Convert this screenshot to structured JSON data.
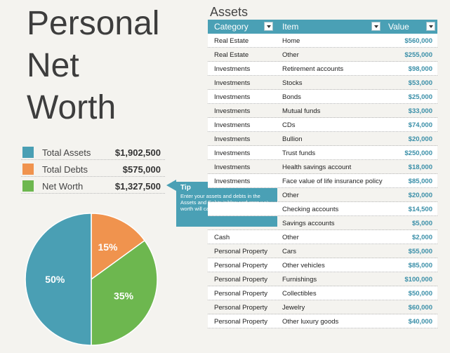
{
  "title": {
    "line1": "Personal",
    "line2": "Net",
    "line3": "Worth"
  },
  "summary": [
    {
      "label": "Total Assets",
      "value": "$1,902,500",
      "color": "#4a9fb4"
    },
    {
      "label": "Total Debts",
      "value": "$575,000",
      "color": "#f0934e"
    },
    {
      "label": "Net Worth",
      "value": "$1,327,500",
      "color": "#6db74f"
    }
  ],
  "tip": {
    "title": "Tip",
    "text": "Enter your assets and debts in the Assets and Debts tables and your net worth will calculate automatically."
  },
  "chart_data": {
    "type": "pie",
    "slices": [
      {
        "label": "50%",
        "value": 50,
        "color": "#4a9fb4"
      },
      {
        "label": "15%",
        "value": 15,
        "color": "#f0934e"
      },
      {
        "label": "35%",
        "value": 35,
        "color": "#6db74f"
      }
    ]
  },
  "assets": {
    "title": "Assets",
    "headers": {
      "category": "Category",
      "item": "Item",
      "value": "Value"
    },
    "rows": [
      {
        "category": "Real Estate",
        "item": "Home",
        "value": "$560,000"
      },
      {
        "category": "Real Estate",
        "item": "Other",
        "value": "$255,000"
      },
      {
        "category": "Investments",
        "item": "Retirement accounts",
        "value": "$98,000"
      },
      {
        "category": "Investments",
        "item": "Stocks",
        "value": "$53,000"
      },
      {
        "category": "Investments",
        "item": "Bonds",
        "value": "$25,000"
      },
      {
        "category": "Investments",
        "item": "Mutual funds",
        "value": "$33,000"
      },
      {
        "category": "Investments",
        "item": "CDs",
        "value": "$74,000"
      },
      {
        "category": "Investments",
        "item": "Bullion",
        "value": "$20,000"
      },
      {
        "category": "Investments",
        "item": "Trust funds",
        "value": "$250,000"
      },
      {
        "category": "Investments",
        "item": "Health savings account",
        "value": "$18,000"
      },
      {
        "category": "Investments",
        "item": "Face value of life insurance policy",
        "value": "$85,000"
      },
      {
        "category": "",
        "item": "Other",
        "value": "$20,000"
      },
      {
        "category": "",
        "item": "Checking accounts",
        "value": "$14,500"
      },
      {
        "category": "",
        "item": "Savings accounts",
        "value": "$5,000"
      },
      {
        "category": "Cash",
        "item": "Other",
        "value": "$2,000"
      },
      {
        "category": "Personal Property",
        "item": "Cars",
        "value": "$55,000"
      },
      {
        "category": "Personal Property",
        "item": "Other vehicles",
        "value": "$85,000"
      },
      {
        "category": "Personal Property",
        "item": "Furnishings",
        "value": "$100,000"
      },
      {
        "category": "Personal Property",
        "item": "Collectibles",
        "value": "$50,000"
      },
      {
        "category": "Personal Property",
        "item": "Jewelry",
        "value": "$60,000"
      },
      {
        "category": "Personal Property",
        "item": "Other luxury goods",
        "value": "$40,000"
      }
    ]
  },
  "icons": {
    "filter_dropdown": "chevron-down-icon"
  }
}
